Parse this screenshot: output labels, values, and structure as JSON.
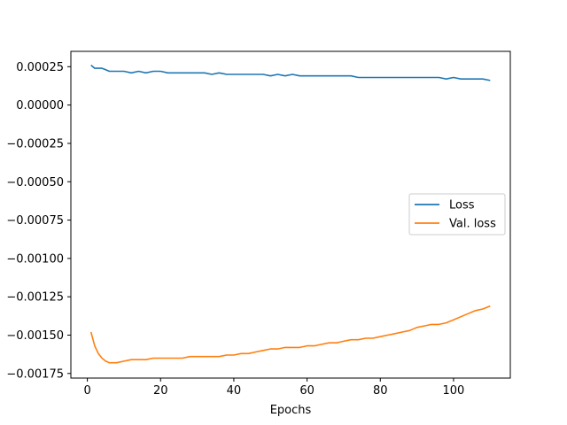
{
  "chart_data": {
    "type": "line",
    "title": "",
    "xlabel": "Epochs",
    "ylabel": "",
    "xlim": [
      -4.5,
      115.5
    ],
    "ylim": [
      -0.00178,
      0.00035
    ],
    "x_ticks": [
      0,
      20,
      40,
      60,
      80,
      100
    ],
    "x_tick_labels": [
      "0",
      "20",
      "40",
      "60",
      "80",
      "100"
    ],
    "y_ticks": [
      0.00025,
      0.0,
      -0.00025,
      -0.0005,
      -0.00075,
      -0.001,
      -0.00125,
      -0.0015,
      -0.00175
    ],
    "y_tick_labels": [
      "0.00025",
      "0.00000",
      "−0.00025",
      "−0.00050",
      "−0.00075",
      "−0.00100",
      "−0.00125",
      "−0.00150",
      "−0.00175"
    ],
    "grid": false,
    "legend_position": "center-right",
    "series": [
      {
        "name": "Loss",
        "color": "#1f77b4",
        "x": [
          1,
          2,
          3,
          4,
          5,
          6,
          7,
          8,
          9,
          10,
          12,
          14,
          16,
          18,
          20,
          22,
          24,
          26,
          28,
          30,
          32,
          34,
          36,
          38,
          40,
          42,
          44,
          46,
          48,
          50,
          52,
          54,
          56,
          58,
          60,
          62,
          64,
          66,
          68,
          70,
          72,
          74,
          76,
          78,
          80,
          82,
          84,
          86,
          88,
          90,
          92,
          94,
          96,
          98,
          100,
          102,
          104,
          106,
          108,
          110
        ],
        "y": [
          0.00026,
          0.00024,
          0.00024,
          0.00024,
          0.00023,
          0.00022,
          0.00022,
          0.00022,
          0.00022,
          0.00022,
          0.00021,
          0.00022,
          0.00021,
          0.00022,
          0.00022,
          0.00021,
          0.00021,
          0.00021,
          0.00021,
          0.00021,
          0.00021,
          0.0002,
          0.00021,
          0.0002,
          0.0002,
          0.0002,
          0.0002,
          0.0002,
          0.0002,
          0.00019,
          0.0002,
          0.00019,
          0.0002,
          0.00019,
          0.00019,
          0.00019,
          0.00019,
          0.00019,
          0.00019,
          0.00019,
          0.00019,
          0.00018,
          0.00018,
          0.00018,
          0.00018,
          0.00018,
          0.00018,
          0.00018,
          0.00018,
          0.00018,
          0.00018,
          0.00018,
          0.00018,
          0.00017,
          0.00018,
          0.00017,
          0.00017,
          0.00017,
          0.00017,
          0.00016
        ]
      },
      {
        "name": "Val. loss",
        "color": "#ff7f0e",
        "x": [
          1,
          2,
          3,
          4,
          5,
          6,
          7,
          8,
          10,
          12,
          14,
          16,
          18,
          20,
          22,
          24,
          26,
          28,
          30,
          32,
          34,
          36,
          38,
          40,
          42,
          44,
          46,
          48,
          50,
          52,
          54,
          56,
          58,
          60,
          62,
          64,
          66,
          68,
          70,
          72,
          74,
          76,
          78,
          80,
          82,
          84,
          86,
          88,
          90,
          92,
          94,
          96,
          98,
          100,
          102,
          104,
          106,
          108,
          110
        ],
        "y": [
          -0.00148,
          -0.00157,
          -0.00162,
          -0.00165,
          -0.00167,
          -0.00168,
          -0.00168,
          -0.00168,
          -0.00167,
          -0.00166,
          -0.00166,
          -0.00166,
          -0.00165,
          -0.00165,
          -0.00165,
          -0.00165,
          -0.00165,
          -0.00164,
          -0.00164,
          -0.00164,
          -0.00164,
          -0.00164,
          -0.00163,
          -0.00163,
          -0.00162,
          -0.00162,
          -0.00161,
          -0.0016,
          -0.00159,
          -0.00159,
          -0.00158,
          -0.00158,
          -0.00158,
          -0.00157,
          -0.00157,
          -0.00156,
          -0.00155,
          -0.00155,
          -0.00154,
          -0.00153,
          -0.00153,
          -0.00152,
          -0.00152,
          -0.00151,
          -0.0015,
          -0.00149,
          -0.00148,
          -0.00147,
          -0.00145,
          -0.00144,
          -0.00143,
          -0.00143,
          -0.00142,
          -0.0014,
          -0.00138,
          -0.00136,
          -0.00134,
          -0.00133,
          -0.00131
        ]
      }
    ]
  }
}
